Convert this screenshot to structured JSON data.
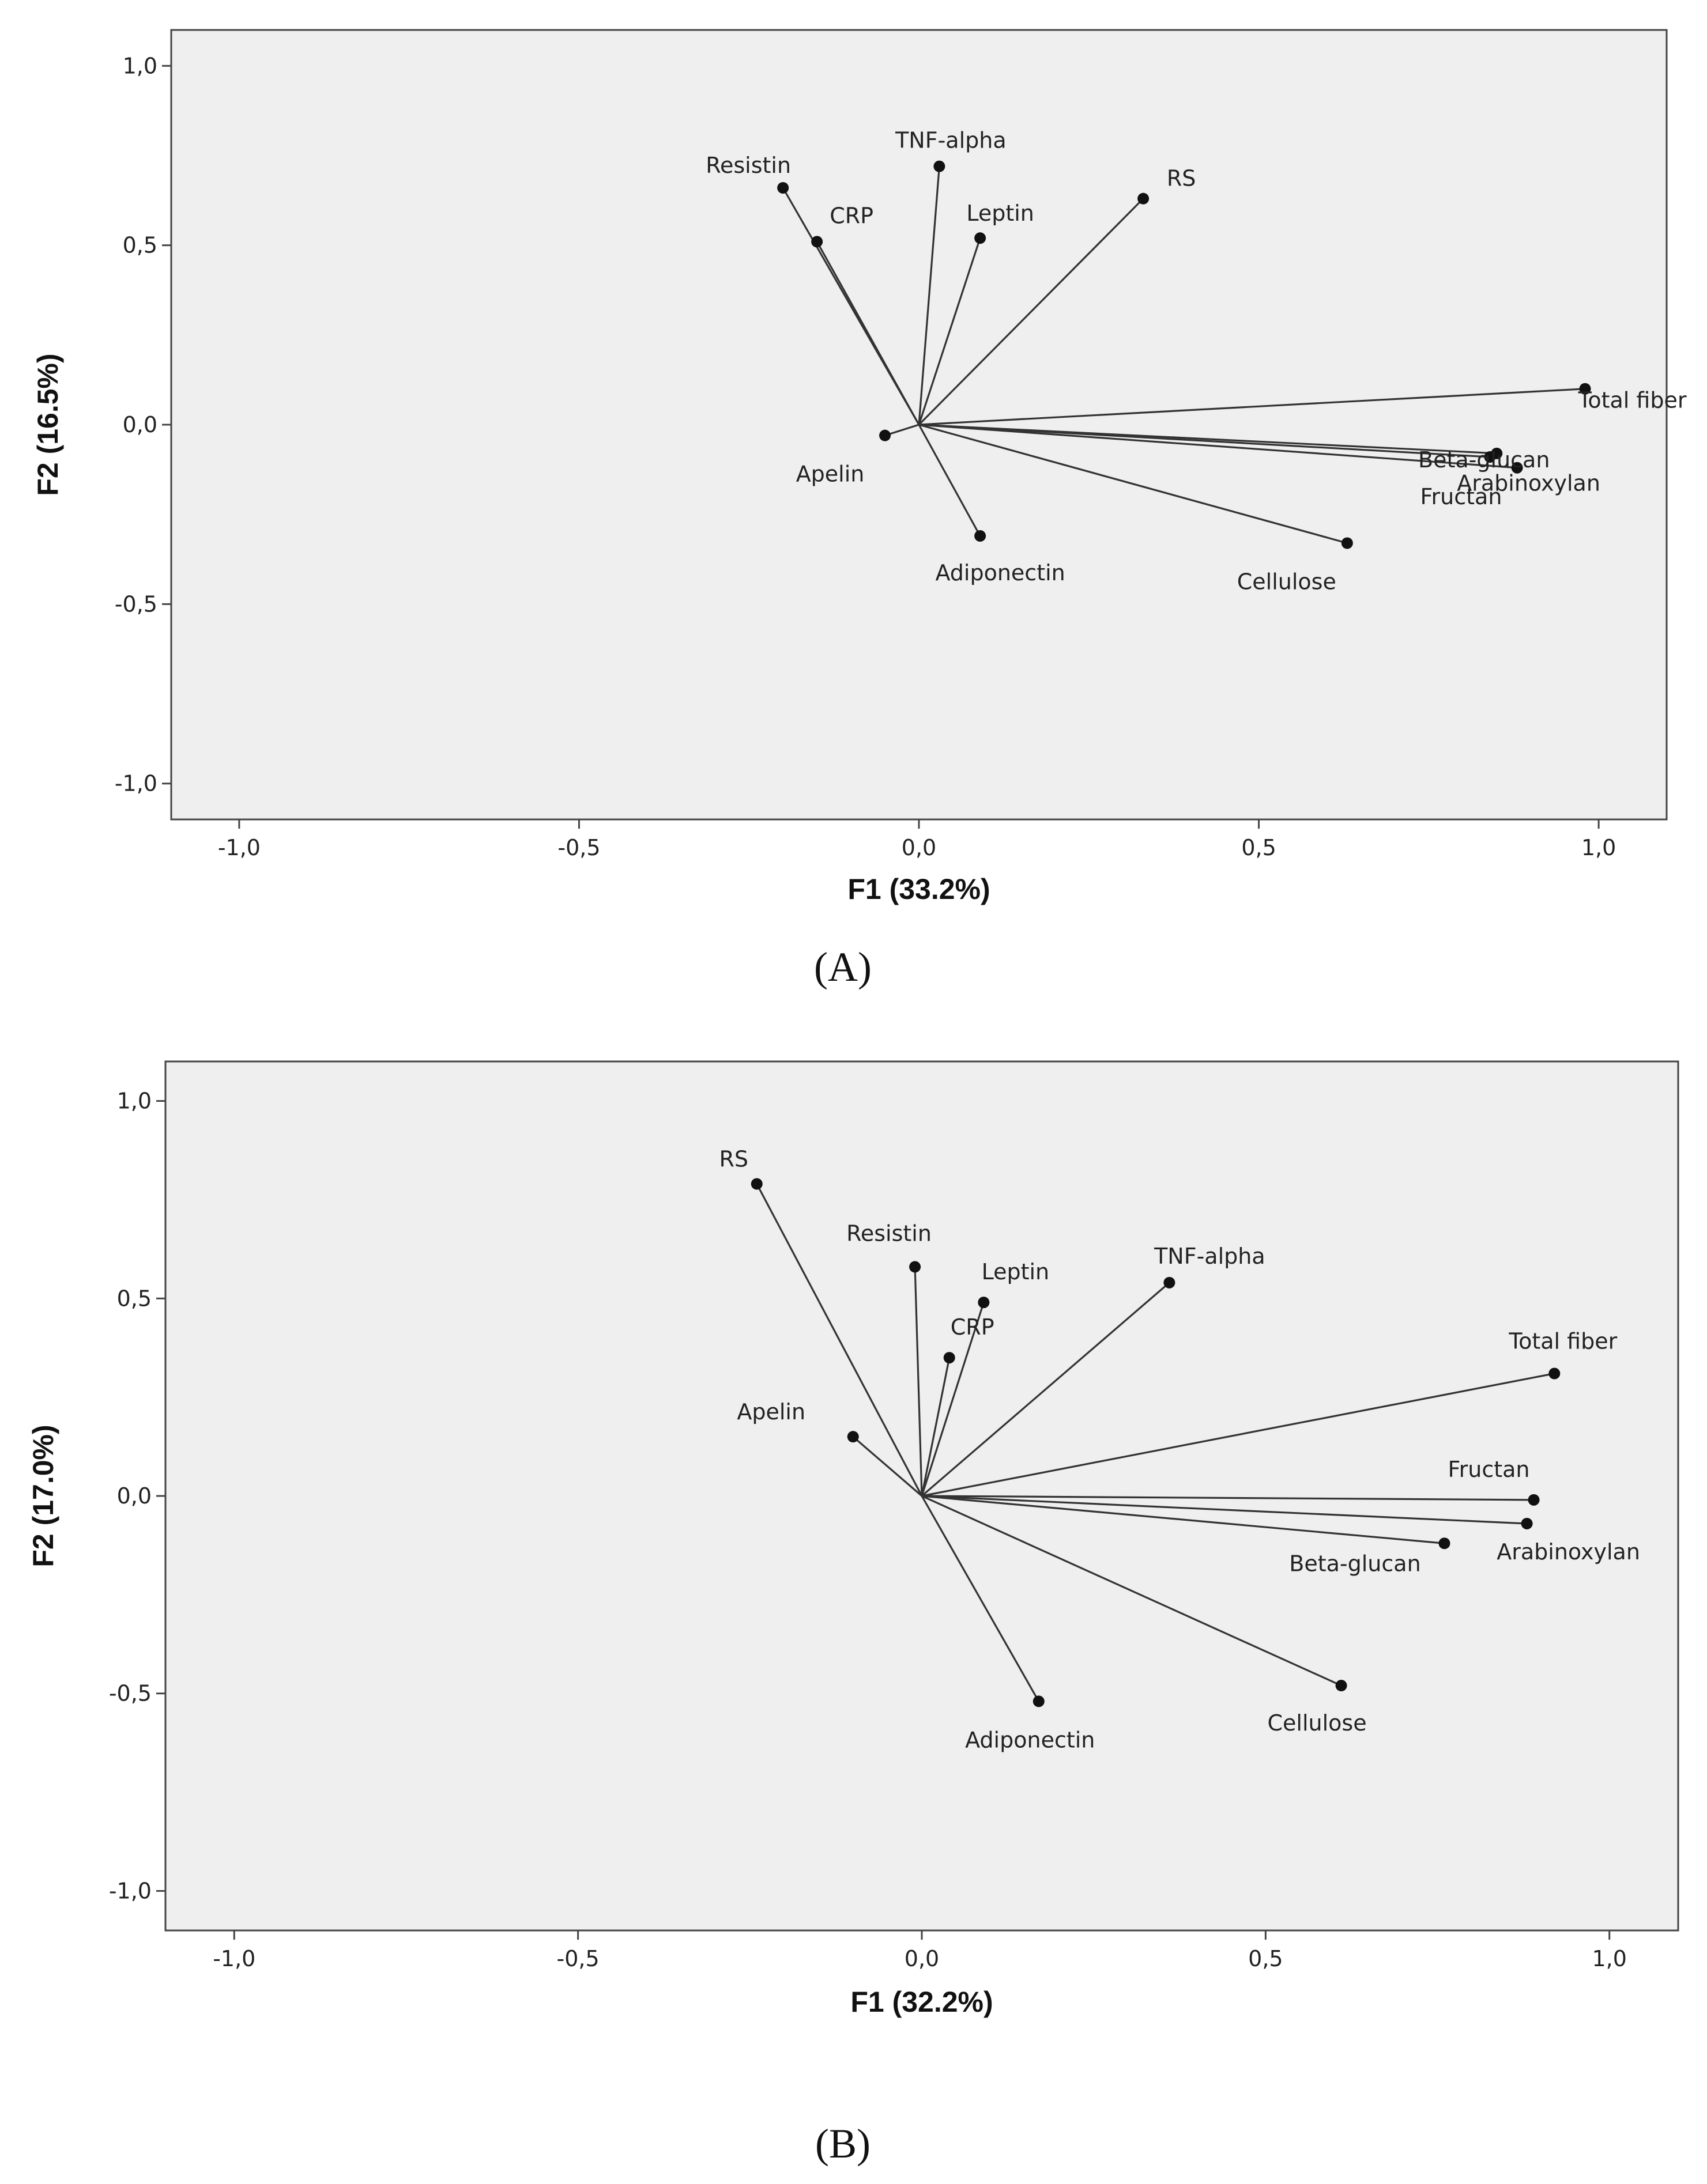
{
  "chart_data": [
    {
      "type": "scatter",
      "subtype": "loading-plot-vectors",
      "panel_label": "(A)",
      "xlabel": "F1 (33.2%)",
      "ylabel": "F2 (16.5%)",
      "xlim": [
        -1.1,
        1.1
      ],
      "ylim": [
        -1.1,
        1.1
      ],
      "xticks": [
        "-1,0",
        "-0,5",
        "0,0",
        "0,5",
        "1,0"
      ],
      "yticks": [
        "1,0",
        "0,5",
        "0,0",
        "-0,5",
        "-1,0"
      ],
      "grid": false,
      "background": "#efefef",
      "points": [
        {
          "name": "TNF-alpha",
          "x": 0.03,
          "y": 0.72
        },
        {
          "name": "Resistin",
          "x": -0.2,
          "y": 0.66
        },
        {
          "name": "CRP",
          "x": -0.15,
          "y": 0.51
        },
        {
          "name": "Leptin",
          "x": 0.09,
          "y": 0.52
        },
        {
          "name": "RS",
          "x": 0.33,
          "y": 0.63
        },
        {
          "name": "Total fiber",
          "x": 0.98,
          "y": 0.1
        },
        {
          "name": "Beta-glucan",
          "x": 0.85,
          "y": -0.08
        },
        {
          "name": "Arabinoxylan",
          "x": 0.88,
          "y": -0.12
        },
        {
          "name": "Fructan",
          "x": 0.84,
          "y": -0.09
        },
        {
          "name": "Cellulose",
          "x": 0.63,
          "y": -0.33
        },
        {
          "name": "Apelin",
          "x": -0.05,
          "y": -0.03
        },
        {
          "name": "Adiponectin",
          "x": 0.09,
          "y": -0.31
        }
      ]
    },
    {
      "type": "scatter",
      "subtype": "loading-plot-vectors",
      "panel_label": "(B)",
      "xlabel": "F1 (32.2%)",
      "ylabel": "F2 (17.0%)",
      "xlim": [
        -1.1,
        1.1
      ],
      "ylim": [
        -1.1,
        1.1
      ],
      "xticks": [
        "-1,0",
        "-0,5",
        "0,0",
        "0,5",
        "1,0"
      ],
      "yticks": [
        "1,0",
        "0,5",
        "0,0",
        "-0,5",
        "-1,0"
      ],
      "grid": false,
      "background": "#efefef",
      "points": [
        {
          "name": "RS",
          "x": -0.24,
          "y": 0.79
        },
        {
          "name": "Resistin",
          "x": -0.01,
          "y": 0.58
        },
        {
          "name": "Leptin",
          "x": 0.09,
          "y": 0.49
        },
        {
          "name": "CRP",
          "x": 0.04,
          "y": 0.35
        },
        {
          "name": "TNF-alpha",
          "x": 0.36,
          "y": 0.54
        },
        {
          "name": "Total fiber",
          "x": 0.92,
          "y": 0.31
        },
        {
          "name": "Apelin",
          "x": -0.1,
          "y": 0.15
        },
        {
          "name": "Fructan",
          "x": 0.89,
          "y": -0.01
        },
        {
          "name": "Arabinoxylan",
          "x": 0.88,
          "y": -0.07
        },
        {
          "name": "Beta-glucan",
          "x": 0.76,
          "y": -0.12
        },
        {
          "name": "Cellulose",
          "x": 0.61,
          "y": -0.48
        },
        {
          "name": "Adiponectin",
          "x": 0.17,
          "y": -0.52
        }
      ]
    }
  ]
}
